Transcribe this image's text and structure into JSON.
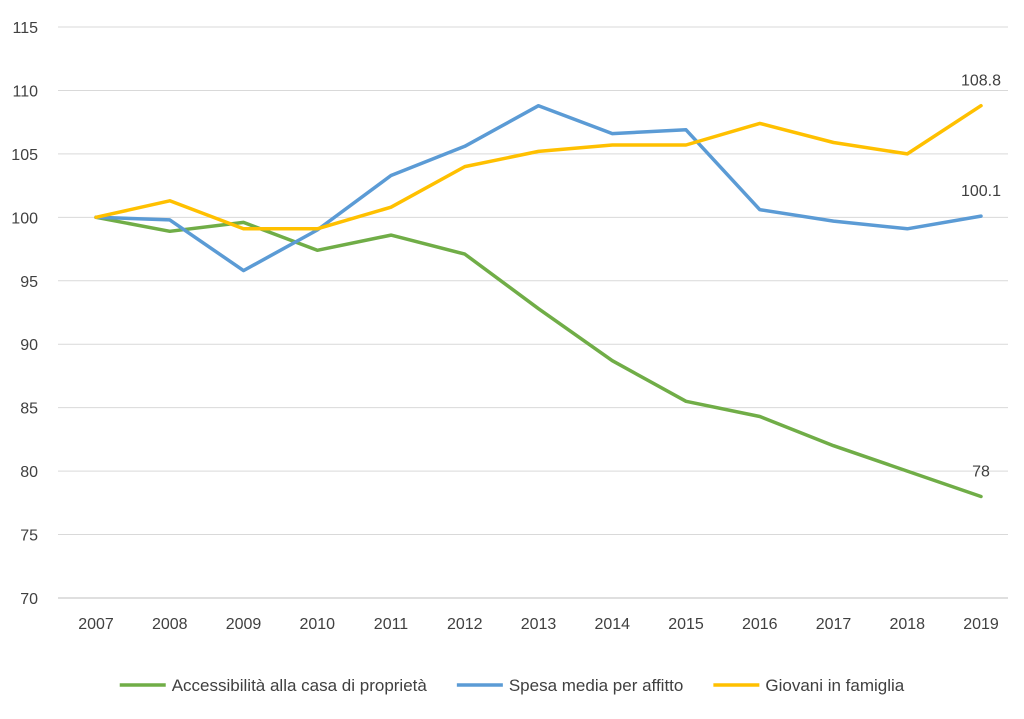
{
  "chart_data": {
    "type": "line",
    "title": "",
    "xlabel": "",
    "ylabel": "",
    "ylim": [
      70,
      115
    ],
    "y_ticks": [
      "70",
      "75",
      "80",
      "85",
      "90",
      "95",
      "100",
      "105",
      "110",
      "115"
    ],
    "grid": true,
    "legend_position": "bottom",
    "categories": [
      "2007",
      "2008",
      "2009",
      "2010",
      "2011",
      "2012",
      "2013",
      "2014",
      "2015",
      "2016",
      "2017",
      "2018",
      "2019"
    ],
    "series": [
      {
        "name": "Accessibilità alla casa di proprietà",
        "color": "#70ad47",
        "values": [
          100,
          98.9,
          99.6,
          97.4,
          98.6,
          97.1,
          92.8,
          88.7,
          85.5,
          84.3,
          82.0,
          80.0,
          78.0
        ],
        "end_label": "78"
      },
      {
        "name": "Spesa media per affitto",
        "color": "#5b9bd5",
        "values": [
          100,
          99.8,
          95.8,
          99.0,
          103.3,
          105.6,
          108.8,
          106.6,
          106.9,
          100.6,
          99.7,
          99.1,
          100.1
        ],
        "end_label": "100.1"
      },
      {
        "name": "Giovani in famiglia",
        "color": "#ffc000",
        "values": [
          100,
          101.3,
          99.1,
          99.1,
          100.8,
          104.0,
          105.2,
          105.7,
          105.7,
          107.4,
          105.9,
          105.0,
          108.8
        ],
        "end_label": "108.8"
      }
    ]
  }
}
